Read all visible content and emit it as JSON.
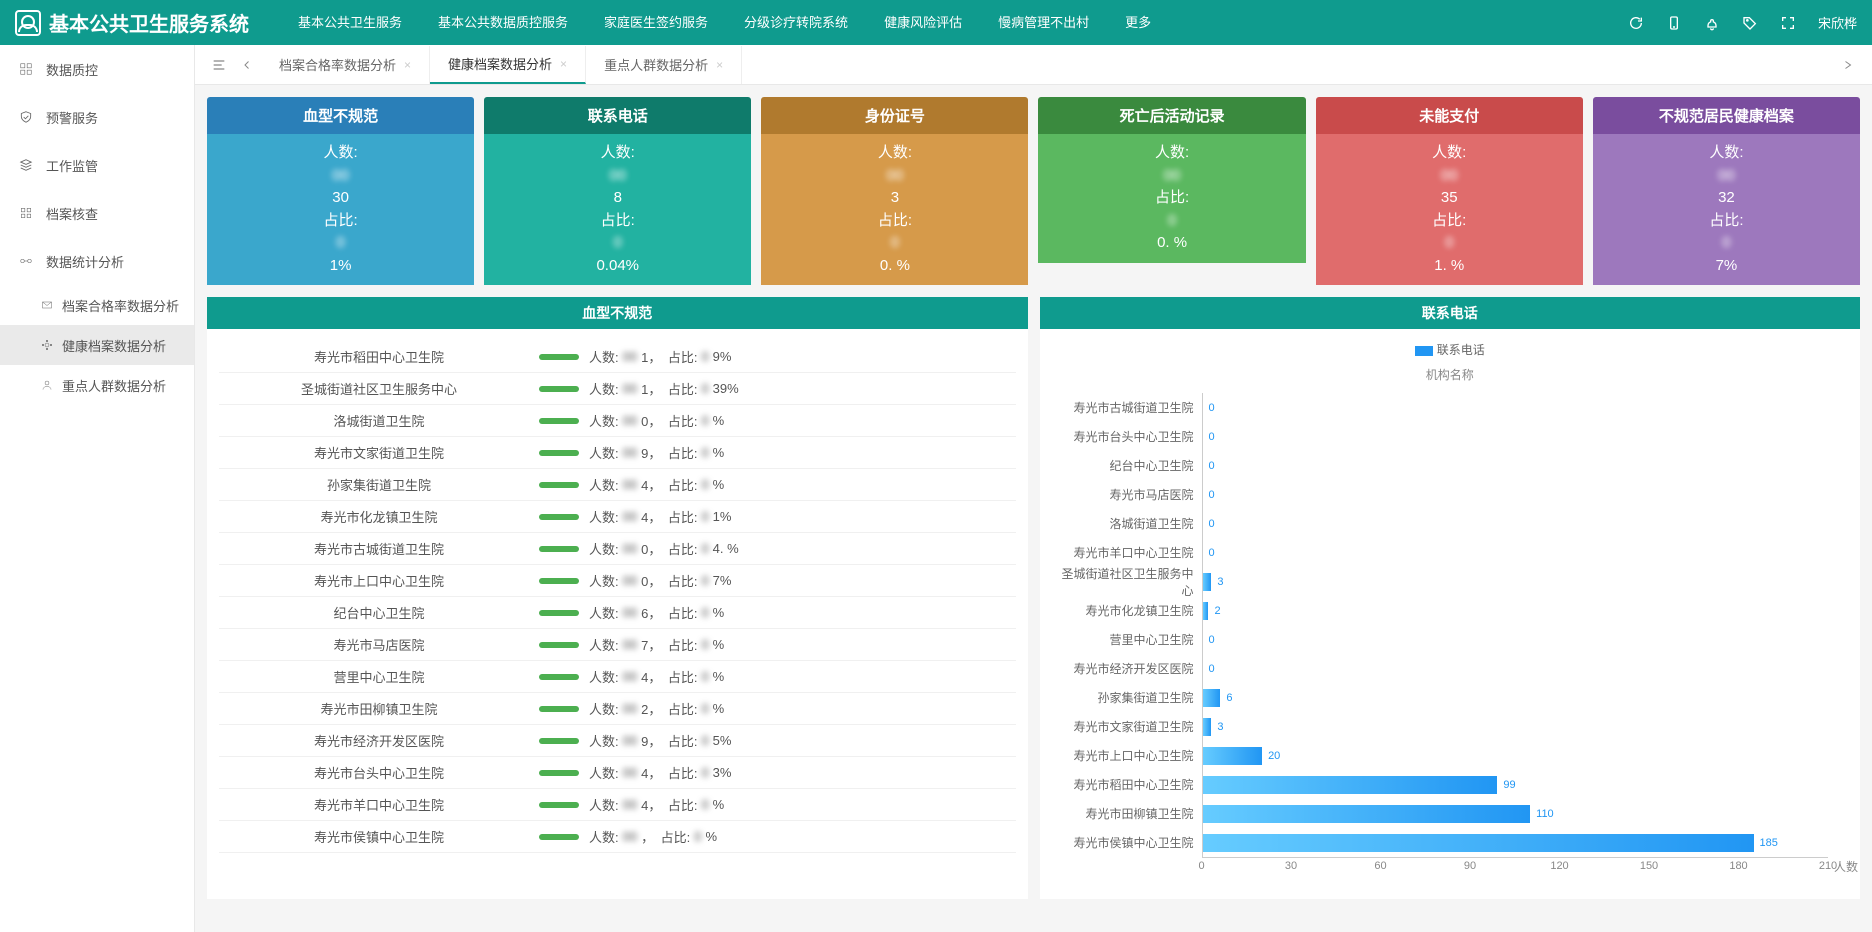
{
  "brand_title": "基本公共卫生服务系统",
  "nav": [
    "基本公共卫生服务",
    "基本公共数据质控服务",
    "家庭医生签约服务",
    "分级诊疗转院系统",
    "健康风险评估",
    "慢病管理不出村",
    "更多"
  ],
  "username": "宋欣桦",
  "sidebar": {
    "items": [
      {
        "label": "数据质控",
        "icon": "grid"
      },
      {
        "label": "预警服务",
        "icon": "shield"
      },
      {
        "label": "工作监管",
        "icon": "stack"
      },
      {
        "label": "档案核查",
        "icon": "list"
      },
      {
        "label": "数据统计分析",
        "icon": "link"
      }
    ],
    "subs": [
      {
        "label": "档案合格率数据分析",
        "icon": "mail",
        "active": false
      },
      {
        "label": "健康档案数据分析",
        "icon": "node",
        "active": true
      },
      {
        "label": "重点人群数据分析",
        "icon": "user",
        "active": false
      }
    ]
  },
  "tabs": [
    {
      "label": "档案合格率数据分析",
      "active": false
    },
    {
      "label": "健康档案数据分析",
      "active": true
    },
    {
      "label": "重点人群数据分析",
      "active": false
    }
  ],
  "cards": [
    {
      "title": "血型不规范",
      "header_color": "#2a7fb8",
      "body_color": "#3aa7cc",
      "count": "30",
      "pct": "1%"
    },
    {
      "title": "联系电话",
      "header_color": "#0f7b6b",
      "body_color": "#22b2a1",
      "count": "8",
      "pct": "0.04%"
    },
    {
      "title": "身份证号",
      "header_color": "#b07a2e",
      "body_color": "#d69a4a",
      "count": "3",
      "pct": "0.  %"
    },
    {
      "title": "死亡后活动记录",
      "header_color": "#3a8a3e",
      "body_color": "#5bb860",
      "count": "",
      "pct": "0.  %"
    },
    {
      "title": "未能支付",
      "header_color": "#c94b4b",
      "body_color": "#e06c6c",
      "count": "35",
      "pct": "1.  %"
    },
    {
      "title": "不规范居民健康档案",
      "header_color": "#7a4d9e",
      "body_color": "#9d78bd",
      "count": "32",
      "pct": "7%"
    }
  ],
  "left_panel": {
    "title": "血型不规范",
    "rows": [
      {
        "org": "寿光市稻田中心卫生院",
        "count": "1",
        "pct": "9%"
      },
      {
        "org": "圣城街道社区卫生服务中心",
        "count": "1",
        "pct": "39%"
      },
      {
        "org": "洛城街道卫生院",
        "count": "0",
        "pct": "%"
      },
      {
        "org": "寿光市文家街道卫生院",
        "count": "9",
        "pct": "%"
      },
      {
        "org": "孙家集街道卫生院",
        "count": "4",
        "pct": "%"
      },
      {
        "org": "寿光市化龙镇卫生院",
        "count": "4",
        "pct": "1%"
      },
      {
        "org": "寿光市古城街道卫生院",
        "count": "0",
        "pct": "4.  %"
      },
      {
        "org": "寿光市上口中心卫生院",
        "count": "0",
        "pct": "7%"
      },
      {
        "org": "纪台中心卫生院",
        "count": "6",
        "pct": "%"
      },
      {
        "org": "寿光市马店医院",
        "count": "7",
        "pct": "%"
      },
      {
        "org": "营里中心卫生院",
        "count": "4",
        "pct": "%"
      },
      {
        "org": "寿光市田柳镇卫生院",
        "count": "2",
        "pct": "%"
      },
      {
        "org": "寿光市经济开发区医院",
        "count": "9",
        "pct": "5%"
      },
      {
        "org": "寿光市台头中心卫生院",
        "count": "4",
        "pct": "3%"
      },
      {
        "org": "寿光市羊口中心卫生院",
        "count": "4",
        "pct": "%"
      },
      {
        "org": "寿光市侯镇中心卫生院",
        "count": "",
        "pct": "%"
      }
    ]
  },
  "right_panel": {
    "title": "联系电话",
    "legend": "联系电话",
    "subtitle": "机构名称",
    "axis_label": "人数",
    "max": 210,
    "ticks": [
      0,
      30,
      60,
      90,
      120,
      150,
      180,
      210
    ],
    "rows": [
      {
        "label": "寿光市古城街道卫生院",
        "value": 0
      },
      {
        "label": "寿光市台头中心卫生院",
        "value": 0
      },
      {
        "label": "纪台中心卫生院",
        "value": 0
      },
      {
        "label": "寿光市马店医院",
        "value": 0
      },
      {
        "label": "洛城街道卫生院",
        "value": 0
      },
      {
        "label": "寿光市羊口中心卫生院",
        "value": 0
      },
      {
        "label": "圣城街道社区卫生服务中心",
        "value": 3
      },
      {
        "label": "寿光市化龙镇卫生院",
        "value": 2
      },
      {
        "label": "营里中心卫生院",
        "value": 0
      },
      {
        "label": "寿光市经济开发区医院",
        "value": 0
      },
      {
        "label": "孙家集街道卫生院",
        "value": 6
      },
      {
        "label": "寿光市文家街道卫生院",
        "value": 3
      },
      {
        "label": "寿光市上口中心卫生院",
        "value": 20
      },
      {
        "label": "寿光市稻田中心卫生院",
        "value": 99
      },
      {
        "label": "寿光市田柳镇卫生院",
        "value": 110
      },
      {
        "label": "寿光市侯镇中心卫生院",
        "value": 185
      }
    ]
  },
  "labels": {
    "count_prefix": "人数:",
    "pct_prefix": "占比:",
    "count_word": "人数",
    "pct_word": "占比",
    "sep": "，"
  }
}
